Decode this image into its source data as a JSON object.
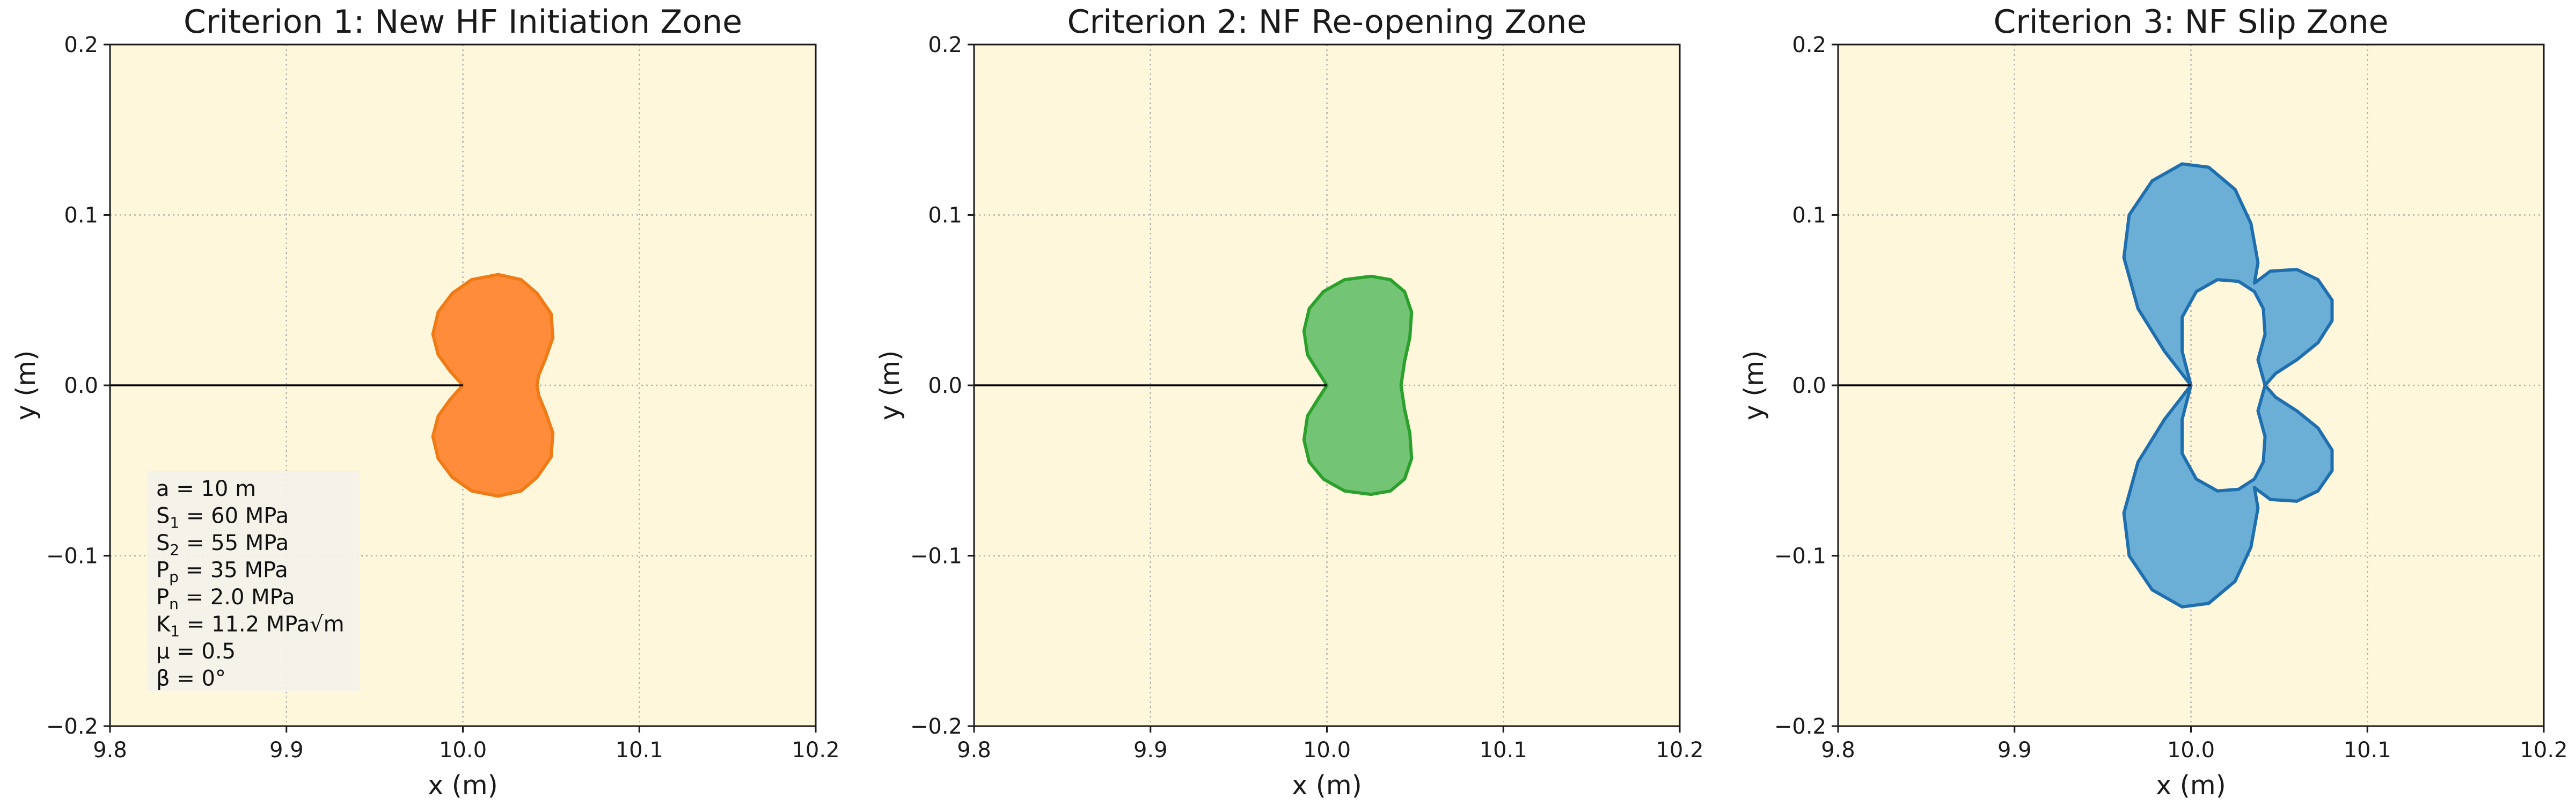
{
  "colors": {
    "plot_background": "#fff7dc",
    "grid": "#b0b0b0",
    "frame": "#1a1a1a",
    "crack_line": "#000000",
    "param_box_fill": "#f3f1ea"
  },
  "chart_data": [
    {
      "type": "area",
      "title": "Criterion 1: New HF Initiation Zone",
      "xlabel": "x (m)",
      "ylabel": "y (m)",
      "xlim": [
        9.8,
        10.2
      ],
      "ylim": [
        -0.2,
        0.2
      ],
      "xticks": [
        "9.8",
        "9.9",
        "10.0",
        "10.1",
        "10.2"
      ],
      "yticks": [
        "−0.2",
        "−0.1",
        "0.0",
        "0.1",
        "0.2"
      ],
      "grid": true,
      "crack_line": {
        "x": [
          9.8,
          10.0
        ],
        "y": [
          0.0,
          0.0
        ]
      },
      "zone": {
        "fill": "#ff8c3a",
        "stroke": "#f07a16",
        "outline": [
          [
            10.0,
            0.0
          ],
          [
            9.993,
            0.008
          ],
          [
            9.986,
            0.018
          ],
          [
            9.983,
            0.03
          ],
          [
            9.986,
            0.043
          ],
          [
            9.994,
            0.054
          ],
          [
            10.005,
            0.062
          ],
          [
            10.02,
            0.065
          ],
          [
            10.033,
            0.062
          ],
          [
            10.042,
            0.054
          ],
          [
            10.05,
            0.042
          ],
          [
            10.051,
            0.028
          ],
          [
            10.047,
            0.016
          ],
          [
            10.043,
            0.006
          ],
          [
            10.042,
            0.0
          ],
          [
            10.043,
            -0.006
          ],
          [
            10.047,
            -0.016
          ],
          [
            10.051,
            -0.028
          ],
          [
            10.05,
            -0.042
          ],
          [
            10.042,
            -0.054
          ],
          [
            10.033,
            -0.062
          ],
          [
            10.02,
            -0.065
          ],
          [
            10.005,
            -0.062
          ],
          [
            9.994,
            -0.054
          ],
          [
            9.986,
            -0.043
          ],
          [
            9.983,
            -0.03
          ],
          [
            9.986,
            -0.018
          ],
          [
            9.993,
            -0.008
          ]
        ]
      },
      "params_box": {
        "fill": "#f3f1ea",
        "lines": [
          {
            "base": "a",
            "sub": "",
            "rest": "   = 10 m"
          },
          {
            "base": "S",
            "sub": "1",
            "rest": " = 60 MPa"
          },
          {
            "base": "S",
            "sub": "2",
            "rest": " = 55 MPa"
          },
          {
            "base": "P",
            "sub": "p",
            "rest": " = 35 MPa"
          },
          {
            "base": "P",
            "sub": "n",
            "rest": " = 2.0 MPa"
          },
          {
            "base": "K",
            "sub": "1",
            "rest": " = 11.2 MPa√m"
          },
          {
            "base": "μ",
            "sub": "",
            "rest": "   =  0.5"
          },
          {
            "base": "β",
            "sub": "",
            "rest": "   = 0°"
          }
        ]
      }
    },
    {
      "type": "area",
      "title": "Criterion 2: NF Re-opening Zone",
      "xlabel": "x (m)",
      "ylabel": "y (m)",
      "xlim": [
        9.8,
        10.2
      ],
      "ylim": [
        -0.2,
        0.2
      ],
      "xticks": [
        "9.8",
        "9.9",
        "10.0",
        "10.1",
        "10.2"
      ],
      "yticks": [
        "−0.2",
        "−0.1",
        "0.0",
        "0.1",
        "0.2"
      ],
      "grid": true,
      "crack_line": {
        "x": [
          9.8,
          10.0
        ],
        "y": [
          0.0,
          0.0
        ]
      },
      "zone": {
        "fill": "#74c476",
        "stroke": "#2ca02c",
        "outline": [
          [
            10.0,
            0.0
          ],
          [
            9.995,
            0.008
          ],
          [
            9.989,
            0.018
          ],
          [
            9.987,
            0.032
          ],
          [
            9.99,
            0.045
          ],
          [
            9.998,
            0.055
          ],
          [
            10.01,
            0.062
          ],
          [
            10.025,
            0.064
          ],
          [
            10.036,
            0.062
          ],
          [
            10.044,
            0.055
          ],
          [
            10.048,
            0.043
          ],
          [
            10.047,
            0.028
          ],
          [
            10.044,
            0.014
          ],
          [
            10.042,
            0.0
          ],
          [
            10.044,
            -0.014
          ],
          [
            10.047,
            -0.028
          ],
          [
            10.048,
            -0.043
          ],
          [
            10.044,
            -0.055
          ],
          [
            10.036,
            -0.062
          ],
          [
            10.025,
            -0.064
          ],
          [
            10.01,
            -0.062
          ],
          [
            9.998,
            -0.055
          ],
          [
            9.99,
            -0.045
          ],
          [
            9.987,
            -0.032
          ],
          [
            9.989,
            -0.018
          ],
          [
            9.995,
            -0.008
          ]
        ]
      }
    },
    {
      "type": "area",
      "title": "Criterion 3: NF Slip Zone",
      "xlabel": "x (m)",
      "ylabel": "y (m)",
      "xlim": [
        9.8,
        10.2
      ],
      "ylim": [
        -0.2,
        0.2
      ],
      "xticks": [
        "9.8",
        "9.9",
        "10.0",
        "10.1",
        "10.2"
      ],
      "yticks": [
        "−0.2",
        "−0.1",
        "0.0",
        "0.1",
        "0.2"
      ],
      "grid": true,
      "crack_line": {
        "x": [
          9.8,
          10.0
        ],
        "y": [
          0.0,
          0.0
        ]
      },
      "zone": {
        "fill": "#6baed6",
        "stroke": "#1f6faf",
        "outline": [
          [
            10.0,
            0.0
          ],
          [
            9.985,
            0.02
          ],
          [
            9.97,
            0.045
          ],
          [
            9.962,
            0.075
          ],
          [
            9.965,
            0.1
          ],
          [
            9.978,
            0.12
          ],
          [
            9.995,
            0.13
          ],
          [
            10.01,
            0.128
          ],
          [
            10.025,
            0.115
          ],
          [
            10.034,
            0.095
          ],
          [
            10.038,
            0.072
          ],
          [
            10.036,
            0.06
          ],
          [
            10.045,
            0.067
          ],
          [
            10.06,
            0.068
          ],
          [
            10.072,
            0.062
          ],
          [
            10.08,
            0.05
          ],
          [
            10.08,
            0.038
          ],
          [
            10.072,
            0.025
          ],
          [
            10.06,
            0.015
          ],
          [
            10.048,
            0.007
          ],
          [
            10.042,
            0.0
          ],
          [
            10.048,
            -0.007
          ],
          [
            10.06,
            -0.015
          ],
          [
            10.072,
            -0.025
          ],
          [
            10.08,
            -0.038
          ],
          [
            10.08,
            -0.05
          ],
          [
            10.072,
            -0.062
          ],
          [
            10.06,
            -0.068
          ],
          [
            10.045,
            -0.067
          ],
          [
            10.036,
            -0.06
          ],
          [
            10.038,
            -0.072
          ],
          [
            10.034,
            -0.095
          ],
          [
            10.025,
            -0.115
          ],
          [
            10.01,
            -0.128
          ],
          [
            9.995,
            -0.13
          ],
          [
            9.978,
            -0.12
          ],
          [
            9.965,
            -0.1
          ],
          [
            9.962,
            -0.075
          ],
          [
            9.97,
            -0.045
          ],
          [
            9.985,
            -0.02
          ]
        ],
        "hole": [
          [
            10.0,
            0.0
          ],
          [
            9.995,
            0.02
          ],
          [
            9.995,
            0.04
          ],
          [
            10.003,
            0.055
          ],
          [
            10.015,
            0.062
          ],
          [
            10.027,
            0.061
          ],
          [
            10.036,
            0.055
          ],
          [
            10.041,
            0.045
          ],
          [
            10.042,
            0.03
          ],
          [
            10.038,
            0.015
          ],
          [
            10.042,
            0.0
          ],
          [
            10.038,
            -0.015
          ],
          [
            10.042,
            -0.03
          ],
          [
            10.041,
            -0.045
          ],
          [
            10.036,
            -0.055
          ],
          [
            10.027,
            -0.061
          ],
          [
            10.015,
            -0.062
          ],
          [
            10.003,
            -0.055
          ],
          [
            9.995,
            -0.04
          ],
          [
            9.995,
            -0.02
          ]
        ]
      }
    }
  ]
}
